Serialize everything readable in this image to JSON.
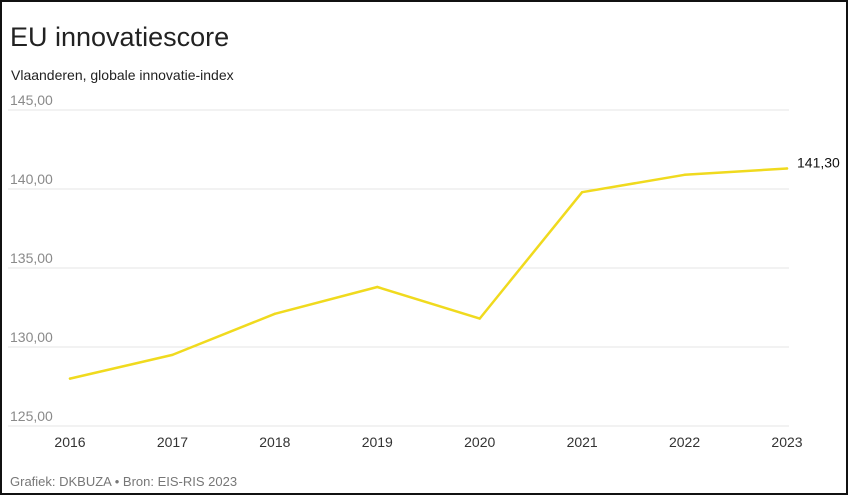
{
  "chart_data": {
    "type": "line",
    "title": "EU innovatiescore",
    "subtitle": "Vlaanderen, globale innovatie-index",
    "footer": "Grafiek: DKBUZA • Bron: EIS-RIS 2023",
    "x": [
      "2016",
      "2017",
      "2018",
      "2019",
      "2020",
      "2021",
      "2022",
      "2023"
    ],
    "series": [
      {
        "values": [
          128.0,
          129.5,
          132.1,
          133.8,
          131.8,
          139.8,
          140.9,
          141.3
        ]
      }
    ],
    "end_label": "141,30",
    "ylim": [
      125,
      145
    ],
    "yticks": [
      125,
      130,
      135,
      140,
      145
    ],
    "ytick_labels": [
      "125,00",
      "130,00",
      "135,00",
      "140,00",
      "145,00"
    ],
    "grid": true,
    "line_color": "#f0da1e",
    "grid_color": "#e6e6e6"
  }
}
